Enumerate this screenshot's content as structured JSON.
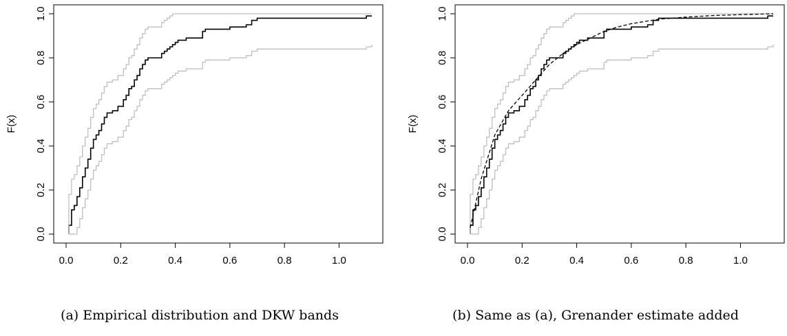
{
  "chart_data": [
    {
      "type": "line",
      "xlabel": "x",
      "ylabel": "F(x)",
      "caption": "(a) Empirical distribution and DKW bands",
      "xlim": [
        0.0,
        1.12
      ],
      "ylim": [
        0.0,
        1.0
      ],
      "xticks": [
        "0.0",
        "0.2",
        "0.4",
        "0.6",
        "0.8",
        "1.0"
      ],
      "yticks": [
        "0.0",
        "0.2",
        "0.4",
        "0.6",
        "0.8",
        "1.0"
      ],
      "grid": false,
      "series": [
        {
          "kind": "ecdf",
          "color": "#000000",
          "dash": "solid",
          "x": [
            0.01,
            0.02,
            0.03,
            0.04,
            0.05,
            0.06,
            0.07,
            0.08,
            0.09,
            0.1,
            0.11,
            0.12,
            0.13,
            0.14,
            0.15,
            0.17,
            0.19,
            0.21,
            0.22,
            0.23,
            0.24,
            0.25,
            0.26,
            0.27,
            0.28,
            0.29,
            0.3,
            0.31,
            0.32,
            0.35,
            0.36,
            0.37,
            0.38,
            0.39,
            0.4,
            0.41,
            0.42,
            0.44,
            0.46,
            0.5,
            0.51,
            0.6,
            0.62,
            0.66,
            0.68,
            0.7,
            0.71,
            1.1,
            1.12
          ],
          "y": [
            0.04,
            0.11,
            0.13,
            0.17,
            0.21,
            0.26,
            0.3,
            0.34,
            0.39,
            0.43,
            0.45,
            0.47,
            0.5,
            0.53,
            0.55,
            0.56,
            0.58,
            0.61,
            0.63,
            0.66,
            0.67,
            0.7,
            0.72,
            0.75,
            0.77,
            0.79,
            0.8,
            0.8,
            0.8,
            0.82,
            0.83,
            0.84,
            0.85,
            0.86,
            0.87,
            0.88,
            0.88,
            0.89,
            0.89,
            0.92,
            0.93,
            0.94,
            0.94,
            0.95,
            0.97,
            0.98,
            0.98,
            0.99,
            0.99
          ]
        },
        {
          "kind": "dkw-upper",
          "color": "#bebebe",
          "dash": "solid",
          "x": [
            0.01,
            0.02,
            0.03,
            0.04,
            0.05,
            0.06,
            0.07,
            0.08,
            0.09,
            0.1,
            0.11,
            0.12,
            0.13,
            0.14,
            0.15,
            0.17,
            0.19,
            0.21,
            0.22,
            0.23,
            0.24,
            0.25,
            0.26,
            0.27,
            0.28,
            0.29,
            0.3,
            0.31,
            0.32,
            0.35,
            0.36,
            0.37,
            0.38,
            0.39,
            0.4,
            0.41,
            0.42,
            0.44,
            0.46,
            0.5,
            0.51,
            0.6,
            0.62,
            0.66,
            0.68,
            0.7,
            0.71,
            1.1,
            1.12
          ],
          "y": [
            0.18,
            0.25,
            0.27,
            0.31,
            0.35,
            0.4,
            0.44,
            0.48,
            0.53,
            0.57,
            0.59,
            0.61,
            0.64,
            0.67,
            0.69,
            0.7,
            0.72,
            0.75,
            0.77,
            0.8,
            0.81,
            0.84,
            0.86,
            0.89,
            0.91,
            0.93,
            0.94,
            0.94,
            0.94,
            0.96,
            0.97,
            0.98,
            0.99,
            1.0,
            1.0,
            1.0,
            1.0,
            1.0,
            1.0,
            1.0,
            1.0,
            1.0,
            1.0,
            1.0,
            1.0,
            1.0,
            1.0,
            1.0,
            1.0
          ]
        },
        {
          "kind": "dkw-lower",
          "color": "#bebebe",
          "dash": "solid",
          "x": [
            0.01,
            0.02,
            0.03,
            0.04,
            0.05,
            0.06,
            0.07,
            0.08,
            0.09,
            0.1,
            0.11,
            0.12,
            0.13,
            0.14,
            0.15,
            0.17,
            0.19,
            0.21,
            0.22,
            0.23,
            0.24,
            0.25,
            0.26,
            0.27,
            0.28,
            0.29,
            0.3,
            0.31,
            0.32,
            0.35,
            0.36,
            0.37,
            0.38,
            0.39,
            0.4,
            0.41,
            0.42,
            0.44,
            0.46,
            0.5,
            0.51,
            0.6,
            0.62,
            0.66,
            0.68,
            0.7,
            0.71,
            1.1,
            1.12
          ],
          "y": [
            0.0,
            0.0,
            0.0,
            0.03,
            0.07,
            0.12,
            0.16,
            0.2,
            0.25,
            0.29,
            0.31,
            0.33,
            0.36,
            0.39,
            0.41,
            0.42,
            0.44,
            0.47,
            0.49,
            0.52,
            0.53,
            0.56,
            0.58,
            0.61,
            0.63,
            0.65,
            0.66,
            0.66,
            0.66,
            0.68,
            0.69,
            0.7,
            0.71,
            0.72,
            0.73,
            0.74,
            0.74,
            0.75,
            0.75,
            0.78,
            0.79,
            0.8,
            0.8,
            0.81,
            0.83,
            0.84,
            0.84,
            0.85,
            0.86
          ]
        }
      ]
    },
    {
      "type": "line",
      "xlabel": "x",
      "ylabel": "F(x)",
      "caption": "(b) Same as (a), Grenander estimate added",
      "xlim": [
        0.0,
        1.12
      ],
      "ylim": [
        0.0,
        1.0
      ],
      "xticks": [
        "0.0",
        "0.2",
        "0.4",
        "0.6",
        "0.8",
        "1.0"
      ],
      "yticks": [
        "0.0",
        "0.2",
        "0.4",
        "0.6",
        "0.8",
        "1.0"
      ],
      "grid": false,
      "series": [
        {
          "kind": "ecdf",
          "color": "#000000",
          "dash": "solid",
          "x": [
            0.01,
            0.02,
            0.03,
            0.04,
            0.05,
            0.06,
            0.07,
            0.08,
            0.09,
            0.1,
            0.11,
            0.12,
            0.13,
            0.14,
            0.15,
            0.17,
            0.19,
            0.21,
            0.22,
            0.23,
            0.24,
            0.25,
            0.26,
            0.27,
            0.28,
            0.29,
            0.3,
            0.31,
            0.32,
            0.35,
            0.36,
            0.37,
            0.38,
            0.39,
            0.4,
            0.41,
            0.42,
            0.44,
            0.46,
            0.5,
            0.51,
            0.6,
            0.62,
            0.66,
            0.68,
            0.7,
            0.71,
            1.1,
            1.12
          ],
          "y": [
            0.04,
            0.11,
            0.13,
            0.17,
            0.21,
            0.26,
            0.3,
            0.34,
            0.39,
            0.43,
            0.45,
            0.47,
            0.5,
            0.53,
            0.55,
            0.56,
            0.58,
            0.61,
            0.63,
            0.66,
            0.67,
            0.7,
            0.72,
            0.75,
            0.77,
            0.79,
            0.8,
            0.8,
            0.8,
            0.82,
            0.83,
            0.84,
            0.85,
            0.86,
            0.87,
            0.88,
            0.88,
            0.89,
            0.89,
            0.92,
            0.93,
            0.94,
            0.94,
            0.95,
            0.97,
            0.98,
            0.98,
            0.99,
            0.99
          ]
        },
        {
          "kind": "dkw-upper",
          "color": "#bebebe",
          "dash": "solid",
          "x": [
            0.01,
            0.02,
            0.03,
            0.04,
            0.05,
            0.06,
            0.07,
            0.08,
            0.09,
            0.1,
            0.11,
            0.12,
            0.13,
            0.14,
            0.15,
            0.17,
            0.19,
            0.21,
            0.22,
            0.23,
            0.24,
            0.25,
            0.26,
            0.27,
            0.28,
            0.29,
            0.3,
            0.31,
            0.32,
            0.35,
            0.36,
            0.37,
            0.38,
            0.39,
            0.4,
            0.41,
            0.42,
            0.44,
            0.46,
            0.5,
            0.51,
            0.6,
            0.62,
            0.66,
            0.68,
            0.7,
            0.71,
            1.1,
            1.12
          ],
          "y": [
            0.18,
            0.25,
            0.27,
            0.31,
            0.35,
            0.4,
            0.44,
            0.48,
            0.53,
            0.57,
            0.59,
            0.61,
            0.64,
            0.67,
            0.69,
            0.7,
            0.72,
            0.75,
            0.77,
            0.8,
            0.81,
            0.84,
            0.86,
            0.89,
            0.91,
            0.93,
            0.94,
            0.94,
            0.94,
            0.96,
            0.97,
            0.98,
            0.99,
            1.0,
            1.0,
            1.0,
            1.0,
            1.0,
            1.0,
            1.0,
            1.0,
            1.0,
            1.0,
            1.0,
            1.0,
            1.0,
            1.0,
            1.0,
            1.0
          ]
        },
        {
          "kind": "dkw-lower",
          "color": "#bebebe",
          "dash": "solid",
          "x": [
            0.01,
            0.02,
            0.03,
            0.04,
            0.05,
            0.06,
            0.07,
            0.08,
            0.09,
            0.1,
            0.11,
            0.12,
            0.13,
            0.14,
            0.15,
            0.17,
            0.19,
            0.21,
            0.22,
            0.23,
            0.24,
            0.25,
            0.26,
            0.27,
            0.28,
            0.29,
            0.3,
            0.31,
            0.32,
            0.35,
            0.36,
            0.37,
            0.38,
            0.39,
            0.4,
            0.41,
            0.42,
            0.44,
            0.46,
            0.5,
            0.51,
            0.6,
            0.62,
            0.66,
            0.68,
            0.7,
            0.71,
            1.1,
            1.12
          ],
          "y": [
            0.0,
            0.0,
            0.0,
            0.03,
            0.07,
            0.12,
            0.16,
            0.2,
            0.25,
            0.29,
            0.31,
            0.33,
            0.36,
            0.39,
            0.41,
            0.42,
            0.44,
            0.47,
            0.49,
            0.52,
            0.53,
            0.56,
            0.58,
            0.61,
            0.63,
            0.65,
            0.66,
            0.66,
            0.66,
            0.68,
            0.69,
            0.7,
            0.71,
            0.72,
            0.73,
            0.74,
            0.74,
            0.75,
            0.75,
            0.78,
            0.79,
            0.8,
            0.8,
            0.81,
            0.83,
            0.84,
            0.84,
            0.85,
            0.86
          ]
        },
        {
          "kind": "grenander",
          "color": "#000000",
          "dash": "dashed",
          "x": [
            0.01,
            0.05,
            0.1,
            0.15,
            0.2,
            0.25,
            0.3,
            0.35,
            0.4,
            0.45,
            0.5,
            0.55,
            0.6,
            0.7,
            0.8,
            0.9,
            1.0,
            1.12
          ],
          "y": [
            0.03,
            0.25,
            0.45,
            0.56,
            0.63,
            0.7,
            0.77,
            0.82,
            0.86,
            0.89,
            0.92,
            0.94,
            0.955,
            0.975,
            0.985,
            0.992,
            0.996,
            1.0
          ]
        }
      ]
    }
  ]
}
